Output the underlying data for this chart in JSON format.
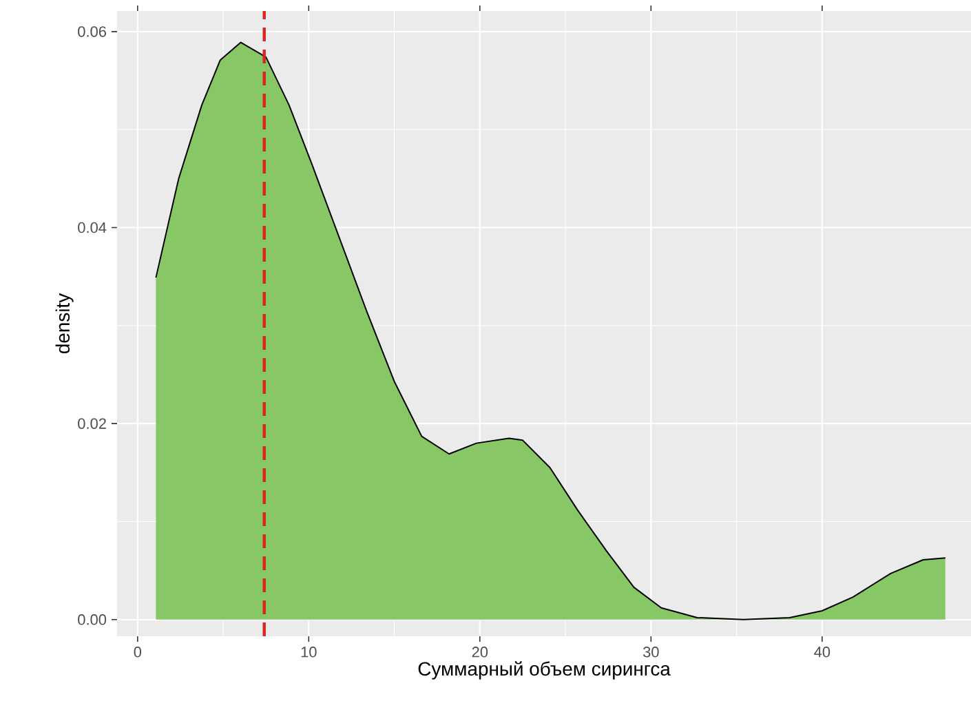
{
  "chart_data": {
    "type": "area",
    "xlabel": "Суммарный объем сирингса",
    "ylabel": "density",
    "xlim": [
      -1.2,
      48.7
    ],
    "ylim": [
      -0.0017,
      0.0621
    ],
    "xticks": [
      0,
      10,
      20,
      30,
      40
    ],
    "yticks": [
      {
        "value": 0,
        "label": "0.00"
      },
      {
        "value": 0.02,
        "label": "0.02"
      },
      {
        "value": 0.04,
        "label": "0.04"
      },
      {
        "value": 0.06,
        "label": "0.06"
      }
    ],
    "grid": true,
    "series": [
      {
        "color": "#88c765",
        "x": [
          1.07,
          2.4,
          3.75,
          4.83,
          6.03,
          7.5,
          8.85,
          10.2,
          11.8,
          13.4,
          15.0,
          16.6,
          18.2,
          19.8,
          21.7,
          22.5,
          24.1,
          25.7,
          27.4,
          29.0,
          30.6,
          32.7,
          35.4,
          38.1,
          40.0,
          41.8,
          44.0,
          45.9,
          47.2
        ],
        "values": [
          0.0349,
          0.045,
          0.0525,
          0.0571,
          0.0589,
          0.0574,
          0.0525,
          0.0464,
          0.0389,
          0.0314,
          0.0243,
          0.0187,
          0.0169,
          0.018,
          0.0185,
          0.0183,
          0.0155,
          0.0112,
          0.007,
          0.0033,
          0.0012,
          0.0002,
          0.0,
          0.0002,
          0.0009,
          0.0023,
          0.0047,
          0.0061,
          0.0063
        ]
      }
    ],
    "ref_lines": [
      {
        "axis": "x",
        "value": 7.4,
        "color": "#dd2222",
        "line_style": "dashed"
      }
    ]
  }
}
